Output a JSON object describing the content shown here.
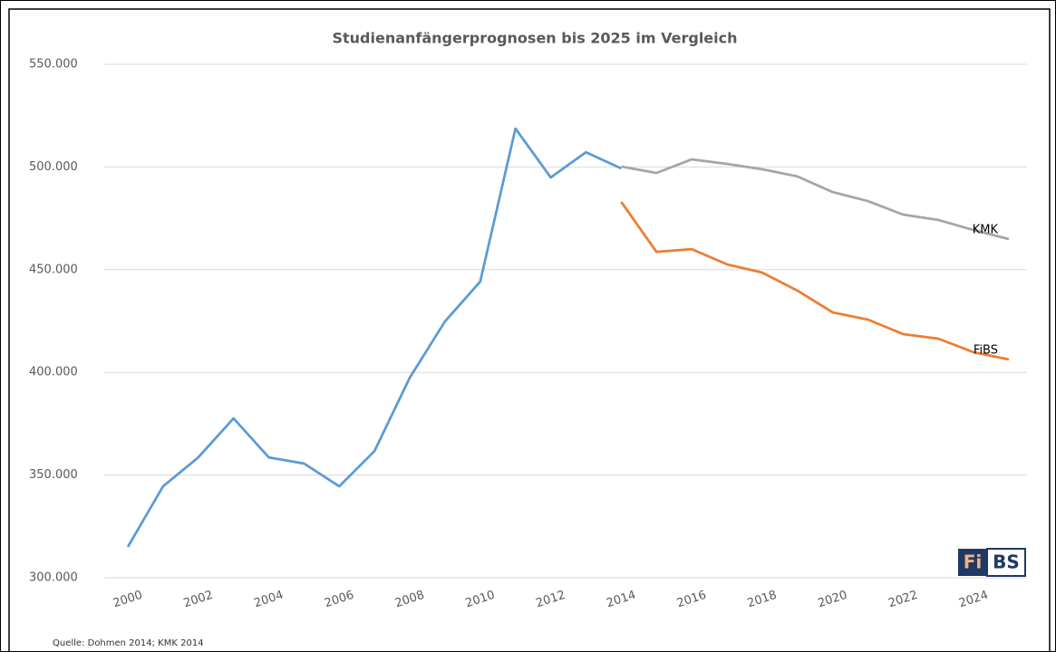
{
  "chart_data": {
    "type": "line",
    "title": "Studienanfängerprognosen bis 2025 im Vergleich",
    "source": "Quelle: Dohmen 2014; KMK 2014",
    "logo": [
      "Fi",
      "BS"
    ],
    "x": [
      2000,
      2001,
      2002,
      2003,
      2004,
      2005,
      2006,
      2007,
      2008,
      2009,
      2010,
      2011,
      2012,
      2013,
      2014,
      2015,
      2016,
      2017,
      2018,
      2019,
      2020,
      2021,
      2022,
      2023,
      2024,
      2025
    ],
    "xlim": [
      2000,
      2025
    ],
    "xticks": [
      2000,
      2002,
      2004,
      2006,
      2008,
      2010,
      2012,
      2014,
      2016,
      2018,
      2020,
      2022,
      2024
    ],
    "ylim": [
      300000,
      550000
    ],
    "yticks": [
      {
        "value": 300000,
        "label": "300.000"
      },
      {
        "value": 350000,
        "label": "350.000"
      },
      {
        "value": 400000,
        "label": "400.000"
      },
      {
        "value": 450000,
        "label": "450.000"
      },
      {
        "value": 500000,
        "label": "500.000"
      },
      {
        "value": 550000,
        "label": "550.000"
      }
    ],
    "grid": true,
    "series": [
      {
        "color": "#5b9bd5",
        "values": [
          315000,
          344500,
          358600,
          377600,
          358600,
          355600,
          344500,
          361700,
          397400,
          424800,
          444200,
          518700,
          494900,
          507200,
          499300,
          null,
          null,
          null,
          null,
          null,
          null,
          null,
          null,
          null,
          null,
          null
        ]
      },
      {
        "name": "KMK",
        "color": "#a5a5a5",
        "values": [
          null,
          null,
          null,
          null,
          null,
          null,
          null,
          null,
          null,
          null,
          null,
          null,
          null,
          null,
          500200,
          497100,
          503700,
          501500,
          498900,
          495400,
          487800,
          483400,
          476800,
          474200,
          469300,
          464900
        ]
      },
      {
        "name": "FiBS",
        "color": "#ed7d31",
        "values": [
          null,
          null,
          null,
          null,
          null,
          null,
          null,
          null,
          null,
          null,
          null,
          null,
          null,
          null,
          483000,
          458700,
          460000,
          452600,
          448600,
          439800,
          429200,
          425700,
          418600,
          416400,
          409800,
          406300
        ]
      }
    ]
  }
}
